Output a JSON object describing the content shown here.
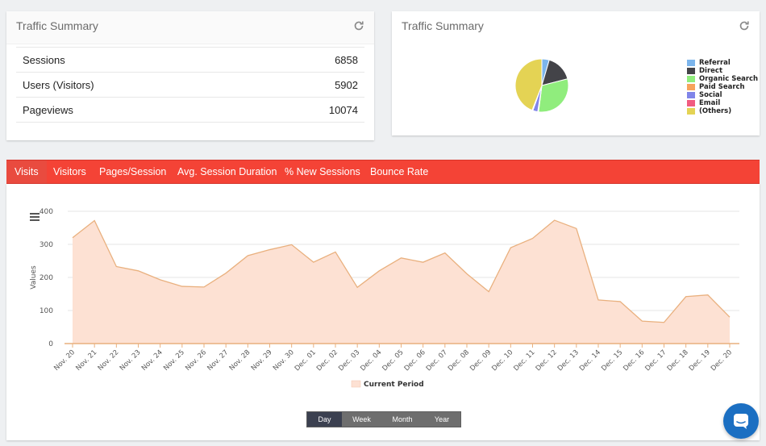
{
  "traffic_table": {
    "title": "Traffic Summary",
    "rows": [
      {
        "label": "Sessions",
        "value": "6858"
      },
      {
        "label": "Users (Visitors)",
        "value": "5902"
      },
      {
        "label": "Pageviews",
        "value": "10074"
      }
    ]
  },
  "traffic_pie": {
    "title": "Traffic Summary"
  },
  "tabs": [
    {
      "label": "Visits",
      "active": true
    },
    {
      "label": "Visitors"
    },
    {
      "label": "Pages/Session"
    },
    {
      "label": "Avg. Session Duration"
    },
    {
      "label": "% New Sessions"
    },
    {
      "label": "Bounce Rate"
    }
  ],
  "periods": [
    {
      "label": "Day",
      "active": true
    },
    {
      "label": "Week"
    },
    {
      "label": "Month"
    },
    {
      "label": "Year"
    }
  ],
  "icons": {
    "refresh": "refresh-icon",
    "menu": "hamburger-menu-icon",
    "chat": "chat-icon"
  },
  "colors": {
    "accent": "#f44336",
    "area_fill": "#fde1d3",
    "area_line": "#e9b07e",
    "chat": "#1b6fc2"
  },
  "chart_data": [
    {
      "type": "pie",
      "categories": [
        "Referral",
        "Direct",
        "Organic Search",
        "Paid Search",
        "Social",
        "Email",
        "(Others)"
      ],
      "values": [
        4.5,
        16.5,
        31,
        0.5,
        3,
        0.5,
        44
      ],
      "colors": [
        "#7cb5ec",
        "#434348",
        "#90ed7d",
        "#f7a35c",
        "#8085e9",
        "#f15c80",
        "#e4d354"
      ],
      "legend_position": "right"
    },
    {
      "type": "area",
      "ylabel": "Values",
      "ylim": [
        0,
        400
      ],
      "yticks": [
        0,
        100,
        200,
        300,
        400
      ],
      "categories": [
        "Nov. 20",
        "Nov. 21",
        "Nov. 22",
        "Nov. 23",
        "Nov. 24",
        "Nov. 25",
        "Nov. 26",
        "Nov. 27",
        "Nov. 28",
        "Nov. 29",
        "Nov. 30",
        "Dec. 01",
        "Dec. 02",
        "Dec. 03",
        "Dec. 04",
        "Dec. 05",
        "Dec. 06",
        "Dec. 07",
        "Dec. 08",
        "Dec. 09",
        "Dec. 10",
        "Dec. 11",
        "Dec. 12",
        "Dec. 13",
        "Dec. 14",
        "Dec. 15",
        "Dec. 16",
        "Dec. 17",
        "Dec. 18",
        "Dec. 19",
        "Dec. 20"
      ],
      "series": [
        {
          "name": "Current Period",
          "values": [
            320,
            372,
            233,
            220,
            193,
            173,
            171,
            213,
            266,
            284,
            299,
            246,
            277,
            170,
            220,
            259,
            246,
            274,
            211,
            157,
            290,
            318,
            373,
            348,
            132,
            127,
            68,
            64,
            142,
            147,
            80
          ]
        }
      ],
      "grid": true,
      "legend_position": "bottom"
    }
  ]
}
